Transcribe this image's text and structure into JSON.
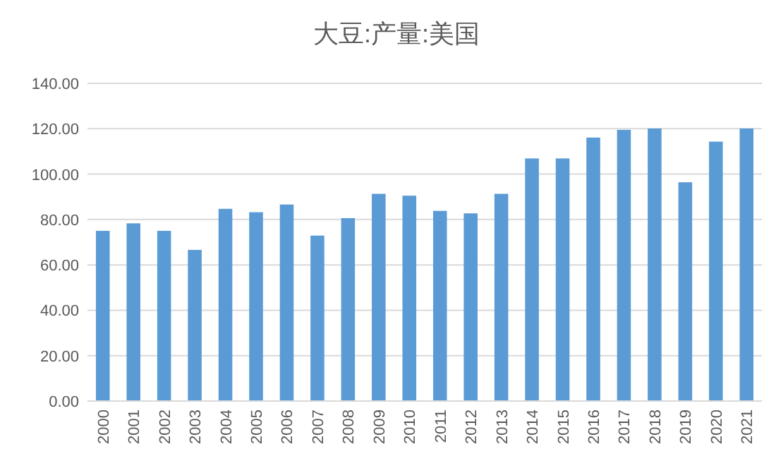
{
  "chart_data": {
    "type": "bar",
    "title": "大豆:产量:美国",
    "categories": [
      "2000",
      "2001",
      "2002",
      "2003",
      "2004",
      "2005",
      "2006",
      "2007",
      "2008",
      "2009",
      "2010",
      "2011",
      "2012",
      "2013",
      "2014",
      "2015",
      "2016",
      "2017",
      "2018",
      "2019",
      "2020",
      "2021"
    ],
    "values": [
      75.0,
      78.3,
      75.0,
      66.6,
      84.7,
      83.2,
      86.6,
      72.9,
      80.6,
      91.3,
      90.5,
      83.8,
      82.7,
      91.3,
      106.9,
      106.9,
      116.1,
      119.5,
      120.1,
      96.4,
      114.3,
      120.1
    ],
    "color": "#5b9bd5",
    "ylim": [
      0,
      140
    ],
    "yticks": [
      {
        "value": 0,
        "label": "0.00"
      },
      {
        "value": 20,
        "label": "20.00"
      },
      {
        "value": 40,
        "label": "40.00"
      },
      {
        "value": 60,
        "label": "60.00"
      },
      {
        "value": 80,
        "label": "80.00"
      },
      {
        "value": 100,
        "label": "100.00"
      },
      {
        "value": 120,
        "label": "120.00"
      },
      {
        "value": 140,
        "label": "140.00"
      }
    ],
    "grid": "y"
  }
}
